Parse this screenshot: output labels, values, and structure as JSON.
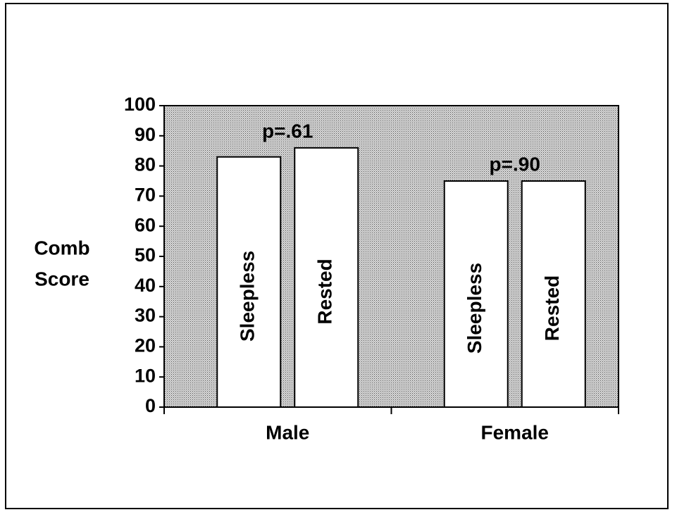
{
  "chart_data": {
    "type": "bar",
    "y_label": [
      "Comb",
      "Score"
    ],
    "categories": [
      "Male",
      "Female"
    ],
    "series": [
      {
        "name": "Sleepless",
        "color": "#ffffff",
        "values": [
          83,
          75
        ]
      },
      {
        "name": "Rested",
        "color": "#ffffff",
        "values": [
          86,
          75
        ]
      }
    ],
    "annotations": [
      "p=.61",
      "p=.90"
    ],
    "ylim": [
      0,
      100
    ],
    "yticks": [
      0,
      10,
      20,
      30,
      40,
      50,
      60,
      70,
      80,
      90,
      100
    ]
  }
}
